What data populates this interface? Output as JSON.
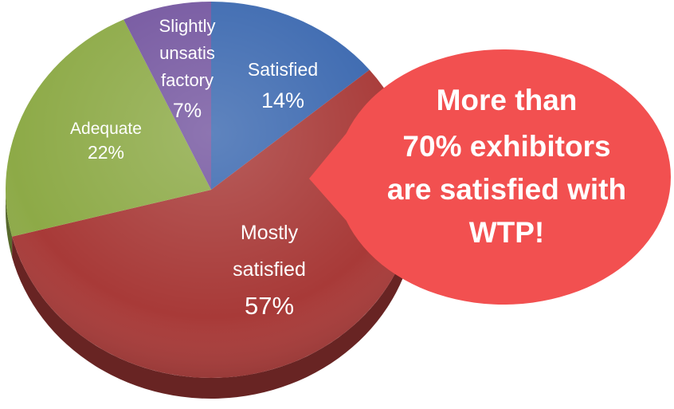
{
  "chart_data": {
    "type": "pie",
    "slices": [
      {
        "label_lines": [
          "Satisfied"
        ],
        "value_label": "14%",
        "value": 14,
        "color": "#3C69B0"
      },
      {
        "label_lines": [
          "Mostly",
          "satisfied"
        ],
        "value_label": "57%",
        "value": 57,
        "color": "#A83A38"
      },
      {
        "label_lines": [
          "Adequate"
        ],
        "value_label": "22%",
        "value": 22,
        "color": "#8DAA47"
      },
      {
        "label_lines": [
          "Slightly",
          "unsatis",
          "factory"
        ],
        "value_label": "7%",
        "value": 7,
        "color": "#7557A0"
      }
    ]
  },
  "callout": {
    "lines": [
      "More than",
      "70% exhibitors",
      "are satisfied with",
      "WTP!"
    ],
    "color": "#F25050"
  }
}
